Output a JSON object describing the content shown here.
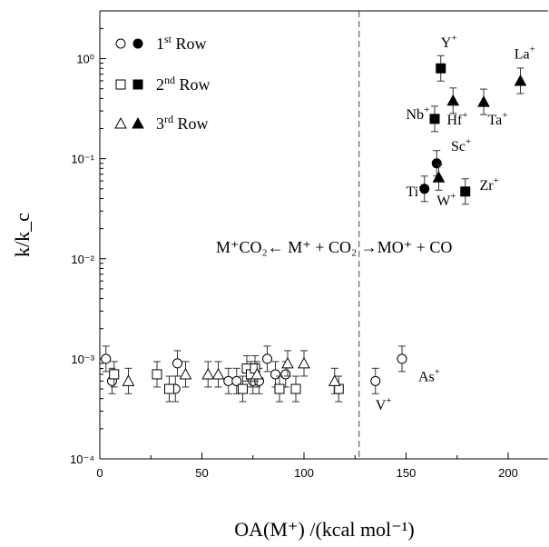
{
  "chart_data": {
    "type": "scatter",
    "title": "",
    "xlabel": "OA(M⁺) /(kcal mol⁻¹)",
    "ylabel": "k/k_c",
    "xlim": [
      0,
      220
    ],
    "ylim": [
      0.0001,
      3
    ],
    "y_scale": "log",
    "x_ticks": [
      0,
      50,
      100,
      150,
      200
    ],
    "y_ticks": [
      {
        "value": 0.0001,
        "label": "10⁻⁴"
      },
      {
        "value": 0.001,
        "label": "10⁻³"
      },
      {
        "value": 0.01,
        "label": "10⁻²"
      },
      {
        "value": 0.1,
        "label": "10⁻¹"
      },
      {
        "value": 1,
        "label": "10⁰"
      }
    ],
    "grid": false,
    "legend_position": "top-left",
    "divider_x": 127,
    "reaction_text": "M⁺CO₂← M⁺ + CO₂ →MO⁺ + CO",
    "series": [
      {
        "name": "1st Row",
        "label_main": "1",
        "label_sup": "st",
        "label_rest": " Row",
        "marker": "circle",
        "open": [
          {
            "x": 3,
            "y": 0.001
          },
          {
            "x": 6,
            "y": 0.0006
          },
          {
            "x": 38,
            "y": 0.0009
          },
          {
            "x": 37,
            "y": 0.0005
          },
          {
            "x": 63,
            "y": 0.0006
          },
          {
            "x": 67,
            "y": 0.0006
          },
          {
            "x": 75,
            "y": 0.0006
          },
          {
            "x": 78,
            "y": 0.0006
          },
          {
            "x": 82,
            "y": 0.001
          },
          {
            "x": 86,
            "y": 0.0007
          },
          {
            "x": 91,
            "y": 0.0007
          },
          {
            "x": 135,
            "y": 0.0006
          },
          {
            "x": 148,
            "y": 0.001
          }
        ],
        "filled": [
          {
            "x": 165,
            "y": 0.09
          },
          {
            "x": 159,
            "y": 0.05
          }
        ]
      },
      {
        "name": "2nd Row",
        "label_main": "2",
        "label_sup": "nd",
        "label_rest": " Row",
        "marker": "square",
        "open": [
          {
            "x": 7,
            "y": 0.0007
          },
          {
            "x": 28,
            "y": 0.0007
          },
          {
            "x": 34,
            "y": 0.0005
          },
          {
            "x": 70,
            "y": 0.0005
          },
          {
            "x": 72,
            "y": 0.0008
          },
          {
            "x": 74,
            "y": 0.0007
          },
          {
            "x": 76,
            "y": 0.0008
          },
          {
            "x": 88,
            "y": 0.0005
          },
          {
            "x": 96,
            "y": 0.0005
          },
          {
            "x": 117,
            "y": 0.0005
          }
        ],
        "filled": [
          {
            "x": 167,
            "y": 0.8
          },
          {
            "x": 164,
            "y": 0.25
          },
          {
            "x": 179,
            "y": 0.047
          }
        ]
      },
      {
        "name": "3rd Row",
        "label_main": "3",
        "label_sup": "rd",
        "label_rest": " Row",
        "marker": "triangle",
        "open": [
          {
            "x": 14,
            "y": 0.0006
          },
          {
            "x": 42,
            "y": 0.0007
          },
          {
            "x": 53,
            "y": 0.0007
          },
          {
            "x": 58,
            "y": 0.0007
          },
          {
            "x": 77,
            "y": 0.0007
          },
          {
            "x": 92,
            "y": 0.0009
          },
          {
            "x": 100,
            "y": 0.0009
          },
          {
            "x": 115,
            "y": 0.0006
          }
        ],
        "filled": [
          {
            "x": 206,
            "y": 0.6
          },
          {
            "x": 173,
            "y": 0.38
          },
          {
            "x": 188,
            "y": 0.37
          },
          {
            "x": 166,
            "y": 0.065
          }
        ]
      }
    ],
    "annotations": [
      {
        "text": "Y",
        "sup": "+",
        "x": 167,
        "y": 1.3
      },
      {
        "text": "La",
        "sup": "+",
        "x": 203,
        "y": 1.0
      },
      {
        "text": "Nb",
        "sup": "+",
        "x": 150,
        "y": 0.25
      },
      {
        "text": "Hf",
        "sup": "+",
        "x": 170,
        "y": 0.22
      },
      {
        "text": "Ta",
        "sup": "+",
        "x": 190,
        "y": 0.22
      },
      {
        "text": "Sc",
        "sup": "+",
        "x": 172,
        "y": 0.12
      },
      {
        "text": "Ti",
        "sup": "+",
        "x": 150,
        "y": 0.042
      },
      {
        "text": "W",
        "sup": "+",
        "x": 165,
        "y": 0.034
      },
      {
        "text": "Zr",
        "sup": "+",
        "x": 186,
        "y": 0.049
      },
      {
        "text": "As",
        "sup": "+",
        "x": 156,
        "y": 0.0006
      },
      {
        "text": "V",
        "sup": "+",
        "x": 135,
        "y": 0.00031
      }
    ]
  }
}
